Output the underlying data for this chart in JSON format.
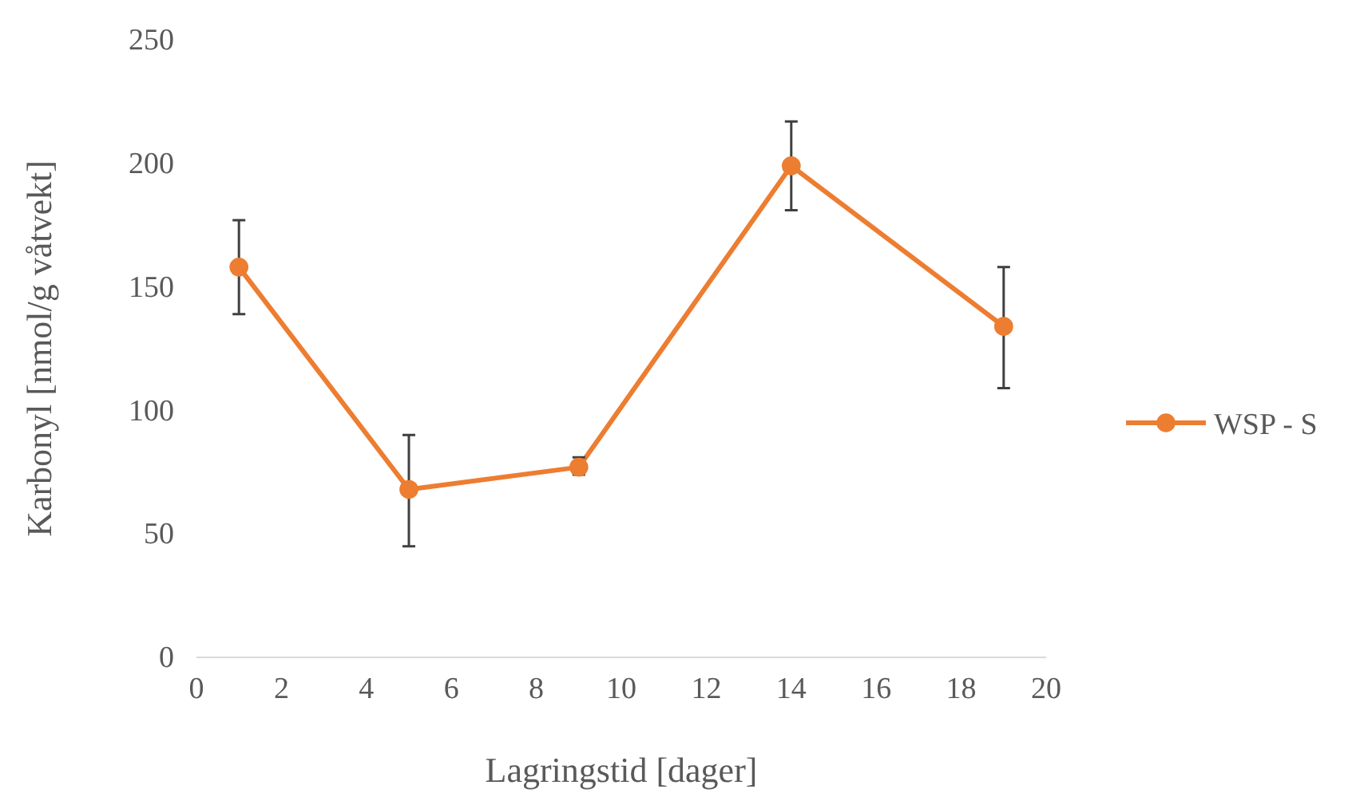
{
  "chart_data": {
    "type": "line",
    "xlabel": "Lagringstid [dager]",
    "ylabel": "Karbonyl [nmol/g våtvekt]",
    "x": [
      1,
      5,
      9,
      14,
      19
    ],
    "series": [
      {
        "name": "WSP - S",
        "color": "#ed7d31",
        "values": [
          158,
          68,
          77,
          199,
          134
        ],
        "errors": [
          [
            139,
            177
          ],
          [
            45,
            90
          ],
          [
            74,
            81
          ],
          [
            181,
            217
          ],
          [
            109,
            158
          ]
        ]
      }
    ],
    "xlim": [
      0,
      20
    ],
    "xticks": [
      0,
      2,
      4,
      6,
      8,
      10,
      12,
      14,
      16,
      18,
      20
    ],
    "ylim": [
      0,
      250
    ],
    "yticks": [
      0,
      50,
      100,
      150,
      200,
      250
    ],
    "grid": false,
    "legend": "right",
    "marker": "circle",
    "line_style": "solid"
  }
}
